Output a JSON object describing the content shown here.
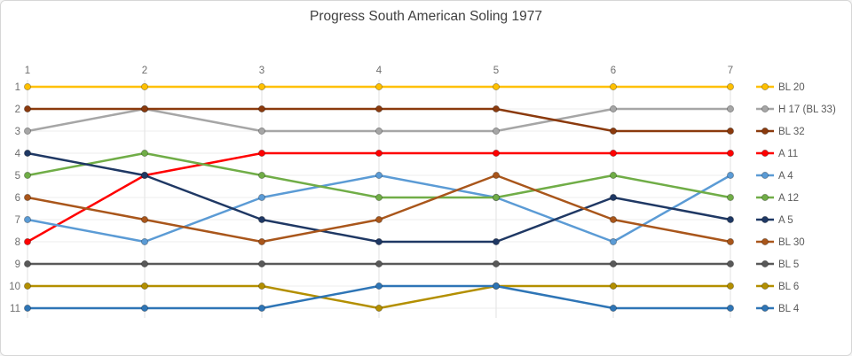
{
  "title": "Progress South American Soling 1977",
  "chart_data": {
    "type": "line",
    "variant": "bump-rank-progression",
    "title": "Progress South American Soling 1977",
    "x_ticks": [
      "1",
      "2",
      "3",
      "4",
      "5",
      "6",
      "7"
    ],
    "x_axis_position": "top",
    "y_ticks": [
      "1",
      "2",
      "3",
      "4",
      "5",
      "6",
      "7",
      "8",
      "9",
      "10",
      "11"
    ],
    "y_axis_inverted": true,
    "ylim": [
      1,
      11
    ],
    "grid": true,
    "legend_position": "right",
    "series": [
      {
        "name": "BL 20",
        "color": "#FFC000",
        "values": [
          1,
          1,
          1,
          1,
          1,
          1,
          1
        ]
      },
      {
        "name": "H 17 (BL 33)",
        "color": "#A6A6A6",
        "values": [
          3,
          2,
          3,
          3,
          3,
          2,
          2
        ]
      },
      {
        "name": "BL 32",
        "color": "#8B3A0D",
        "values": [
          2,
          2,
          2,
          2,
          2,
          3,
          3
        ]
      },
      {
        "name": "A 11",
        "color": "#FF0000",
        "values": [
          8,
          5,
          4,
          4,
          4,
          4,
          4
        ]
      },
      {
        "name": "A 4",
        "color": "#5B9BD5",
        "values": [
          7,
          8,
          6,
          5,
          6,
          8,
          5
        ]
      },
      {
        "name": "A 12",
        "color": "#70AD47",
        "values": [
          5,
          4,
          5,
          6,
          6,
          5,
          6
        ]
      },
      {
        "name": "A 5",
        "color": "#1F3864",
        "values": [
          4,
          5,
          7,
          8,
          8,
          6,
          7
        ]
      },
      {
        "name": "BL 30",
        "color": "#A9561B",
        "values": [
          6,
          7,
          8,
          7,
          5,
          7,
          8
        ]
      },
      {
        "name": "BL 5",
        "color": "#595959",
        "values": [
          9,
          9,
          9,
          9,
          9,
          9,
          9
        ]
      },
      {
        "name": "BL 6",
        "color": "#B38F00",
        "values": [
          10,
          10,
          10,
          11,
          10,
          10,
          10
        ]
      },
      {
        "name": "BL 4",
        "color": "#2E75B6",
        "values": [
          11,
          11,
          11,
          10,
          10,
          11,
          11
        ]
      }
    ]
  },
  "colors": {
    "title_text": "#404040",
    "axis_label_text": "#6E6E6E",
    "legend_text": "#595959",
    "grid_horizontal": "#ECECEC",
    "grid_vertical": "#E2E2E2",
    "card_border": "#D7D7D7",
    "background": "#FFFFFF"
  }
}
